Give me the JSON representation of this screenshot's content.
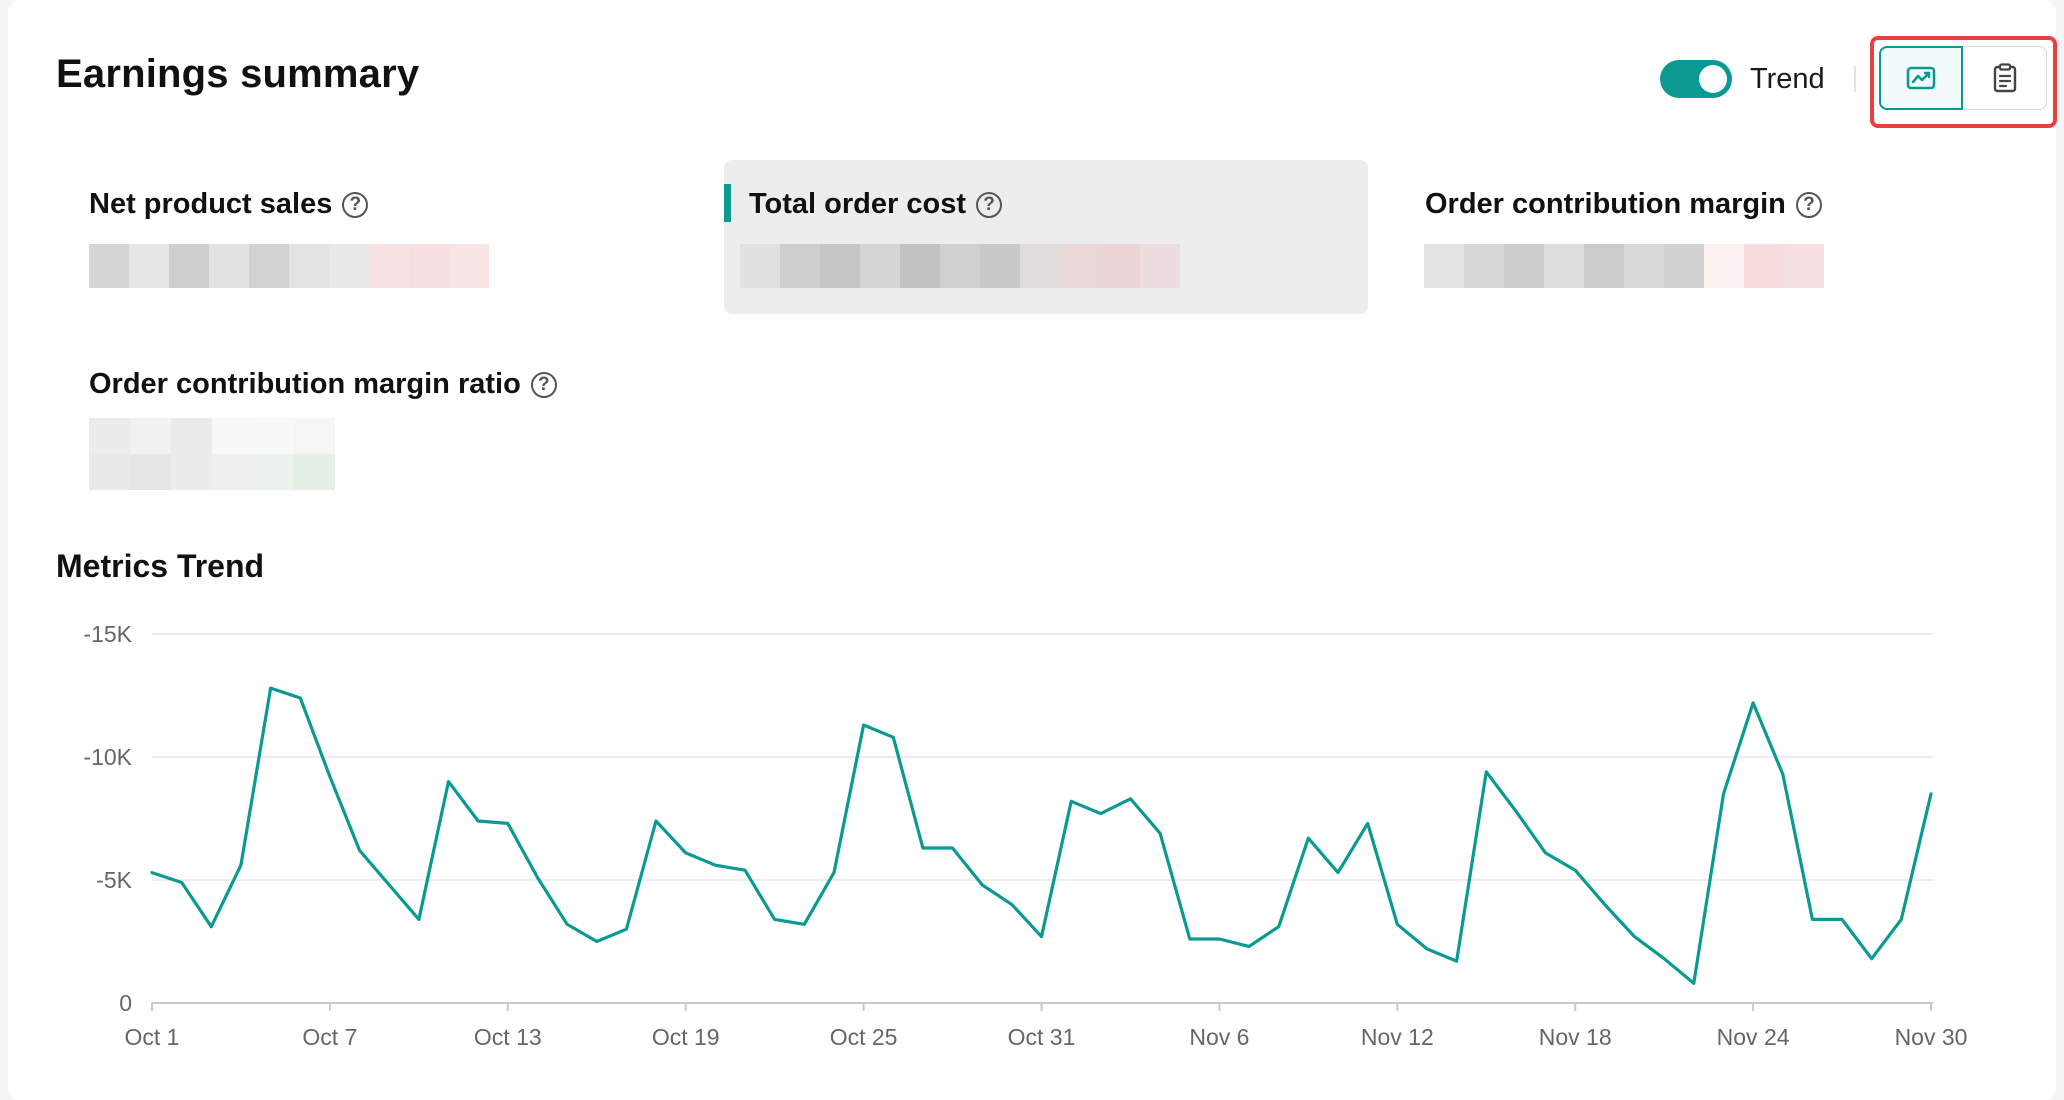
{
  "header": {
    "title": "Earnings summary",
    "toggle_label": "Trend",
    "toggle_on": true
  },
  "view_switch": {
    "options": [
      {
        "icon": "trend-chart-icon",
        "selected": true
      },
      {
        "icon": "clipboard-list-icon",
        "selected": false
      }
    ]
  },
  "metrics": [
    {
      "label": "Net product sales",
      "selected": false
    },
    {
      "label": "Total order cost",
      "selected": true
    },
    {
      "label": "Order contribution margin",
      "selected": false
    },
    {
      "label": "Order contribution margin ratio",
      "selected": false
    }
  ],
  "help_glyph": "?",
  "trend": {
    "title": "Metrics Trend"
  },
  "chart_data": {
    "type": "line",
    "x_tick_labels": [
      "Oct 1",
      "Oct 7",
      "Oct 13",
      "Oct 19",
      "Oct 25",
      "Oct 31",
      "Nov 6",
      "Nov 12",
      "Nov 18",
      "Nov 24",
      "Nov 30"
    ],
    "y_tick_labels": [
      "-15K",
      "-10K",
      "-5K",
      "0"
    ],
    "y_tick_values": [
      15000,
      10000,
      5000,
      0
    ],
    "ylim": [
      0,
      15000
    ],
    "grid": true,
    "line_color": "#0a9a92",
    "series": [
      {
        "values": [
          5300,
          4900,
          3100,
          5600,
          12800,
          12400,
          9200,
          6200,
          4800,
          3400,
          9000,
          7400,
          7300,
          5100,
          3200,
          2500,
          3000,
          7400,
          6100,
          5600,
          5400,
          3400,
          3200,
          5300,
          11300,
          10800,
          6300,
          6300,
          4800,
          4000,
          2700,
          8200,
          7700,
          8300,
          6900,
          2600,
          2600,
          2300,
          3100,
          6700,
          5300,
          7300,
          3200,
          2200,
          1700,
          9400,
          7800,
          6100,
          5400,
          4000,
          2700,
          1800,
          800,
          8500,
          12200,
          9300,
          3400,
          3400,
          1800,
          3400,
          8500
        ]
      }
    ]
  }
}
